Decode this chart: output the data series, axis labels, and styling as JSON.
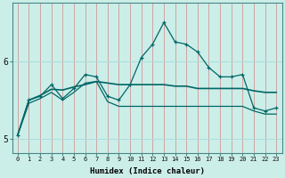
{
  "xlabel": "Humidex (Indice chaleur)",
  "bg_color": "#cceee8",
  "line_color": "#006666",
  "xlim": [
    -0.5,
    23.5
  ],
  "ylim": [
    4.82,
    6.75
  ],
  "yticks": [
    5,
    6
  ],
  "xticks": [
    0,
    1,
    2,
    3,
    4,
    5,
    6,
    7,
    8,
    9,
    10,
    11,
    12,
    13,
    14,
    15,
    16,
    17,
    18,
    19,
    20,
    21,
    22,
    23
  ],
  "line1_x": [
    0,
    1,
    2,
    3,
    4,
    5,
    6,
    7,
    8,
    9,
    10,
    11,
    12,
    13,
    14,
    15,
    16,
    17,
    18,
    19,
    20,
    21,
    22,
    23
  ],
  "line1_y": [
    5.05,
    5.5,
    5.55,
    5.7,
    5.52,
    5.65,
    5.83,
    5.8,
    5.55,
    5.5,
    5.7,
    6.05,
    6.22,
    6.5,
    6.25,
    6.22,
    6.12,
    5.92,
    5.8,
    5.8,
    5.83,
    5.4,
    5.36,
    5.4
  ],
  "line2_x": [
    0,
    1,
    2,
    3,
    4,
    5,
    6,
    7,
    8,
    9,
    10,
    11,
    12,
    13,
    14,
    15,
    16,
    17,
    18,
    19,
    20,
    21,
    22,
    23
  ],
  "line2_y": [
    5.05,
    5.5,
    5.56,
    5.64,
    5.63,
    5.67,
    5.7,
    5.74,
    5.72,
    5.7,
    5.7,
    5.7,
    5.7,
    5.7,
    5.68,
    5.68,
    5.65,
    5.65,
    5.65,
    5.65,
    5.65,
    5.62,
    5.6,
    5.6
  ],
  "line3_x": [
    0,
    1,
    2,
    3,
    4,
    5,
    6,
    7,
    8,
    9,
    10,
    11,
    12,
    13,
    14,
    15,
    16,
    17,
    18,
    19,
    20,
    21,
    22,
    23
  ],
  "line3_y": [
    5.05,
    5.46,
    5.52,
    5.6,
    5.5,
    5.6,
    5.72,
    5.74,
    5.48,
    5.42,
    5.42,
    5.42,
    5.42,
    5.42,
    5.42,
    5.42,
    5.42,
    5.42,
    5.42,
    5.42,
    5.42,
    5.36,
    5.32,
    5.32
  ]
}
